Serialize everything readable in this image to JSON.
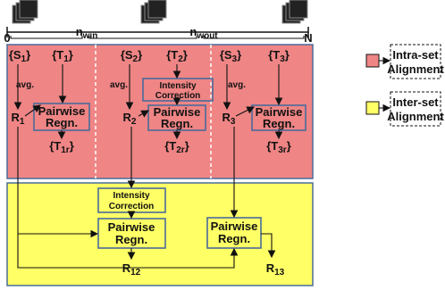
{
  "axis": {
    "start": "0",
    "win": {
      "main": "n",
      "sub": "win"
    },
    "wout": {
      "main": "n",
      "sub": "wout"
    },
    "end": "N"
  },
  "sets": [
    {
      "source": {
        "open": "{S",
        "sub": "1",
        "close": "}"
      },
      "target": {
        "open": "{T",
        "sub": "1",
        "close": "}"
      },
      "avg": "avg.",
      "reference": {
        "main": "R",
        "sub": "1"
      },
      "registration": [
        "Pairwise",
        "Regn."
      ],
      "result": {
        "open": "{T",
        "sub": "1r",
        "close": "}"
      }
    },
    {
      "source": {
        "open": "{S",
        "sub": "2",
        "close": "}"
      },
      "target": {
        "open": "{T",
        "sub": "2",
        "close": "}"
      },
      "avg": "avg.",
      "correction": [
        "Intensity",
        "Correction"
      ],
      "reference": {
        "main": "R",
        "sub": "2"
      },
      "registration": [
        "Pairwise",
        "Regn."
      ],
      "result": {
        "open": "{T",
        "sub": "2r",
        "close": "}"
      }
    },
    {
      "source": {
        "open": "{S",
        "sub": "3",
        "close": "}"
      },
      "target": {
        "open": "{T",
        "sub": "3",
        "close": "}"
      },
      "avg": "avg.",
      "reference": {
        "main": "R",
        "sub": "3"
      },
      "registration": [
        "Pairwise",
        "Regn."
      ],
      "result": {
        "open": "{T",
        "sub": "3r",
        "close": "}"
      }
    }
  ],
  "inter": {
    "correction": [
      "Intensity",
      "Correction"
    ],
    "registration_12": [
      "Pairwise",
      "Regn."
    ],
    "result_12": {
      "main": "R",
      "sub": "12"
    },
    "registration_13": [
      "Pairwise",
      "Regn."
    ],
    "result_13": {
      "main": "R",
      "sub": "13"
    }
  },
  "legend": [
    {
      "label": [
        "Intra-set",
        "Alignment"
      ]
    },
    {
      "label": [
        "Inter-set",
        "Alignment"
      ]
    }
  ]
}
